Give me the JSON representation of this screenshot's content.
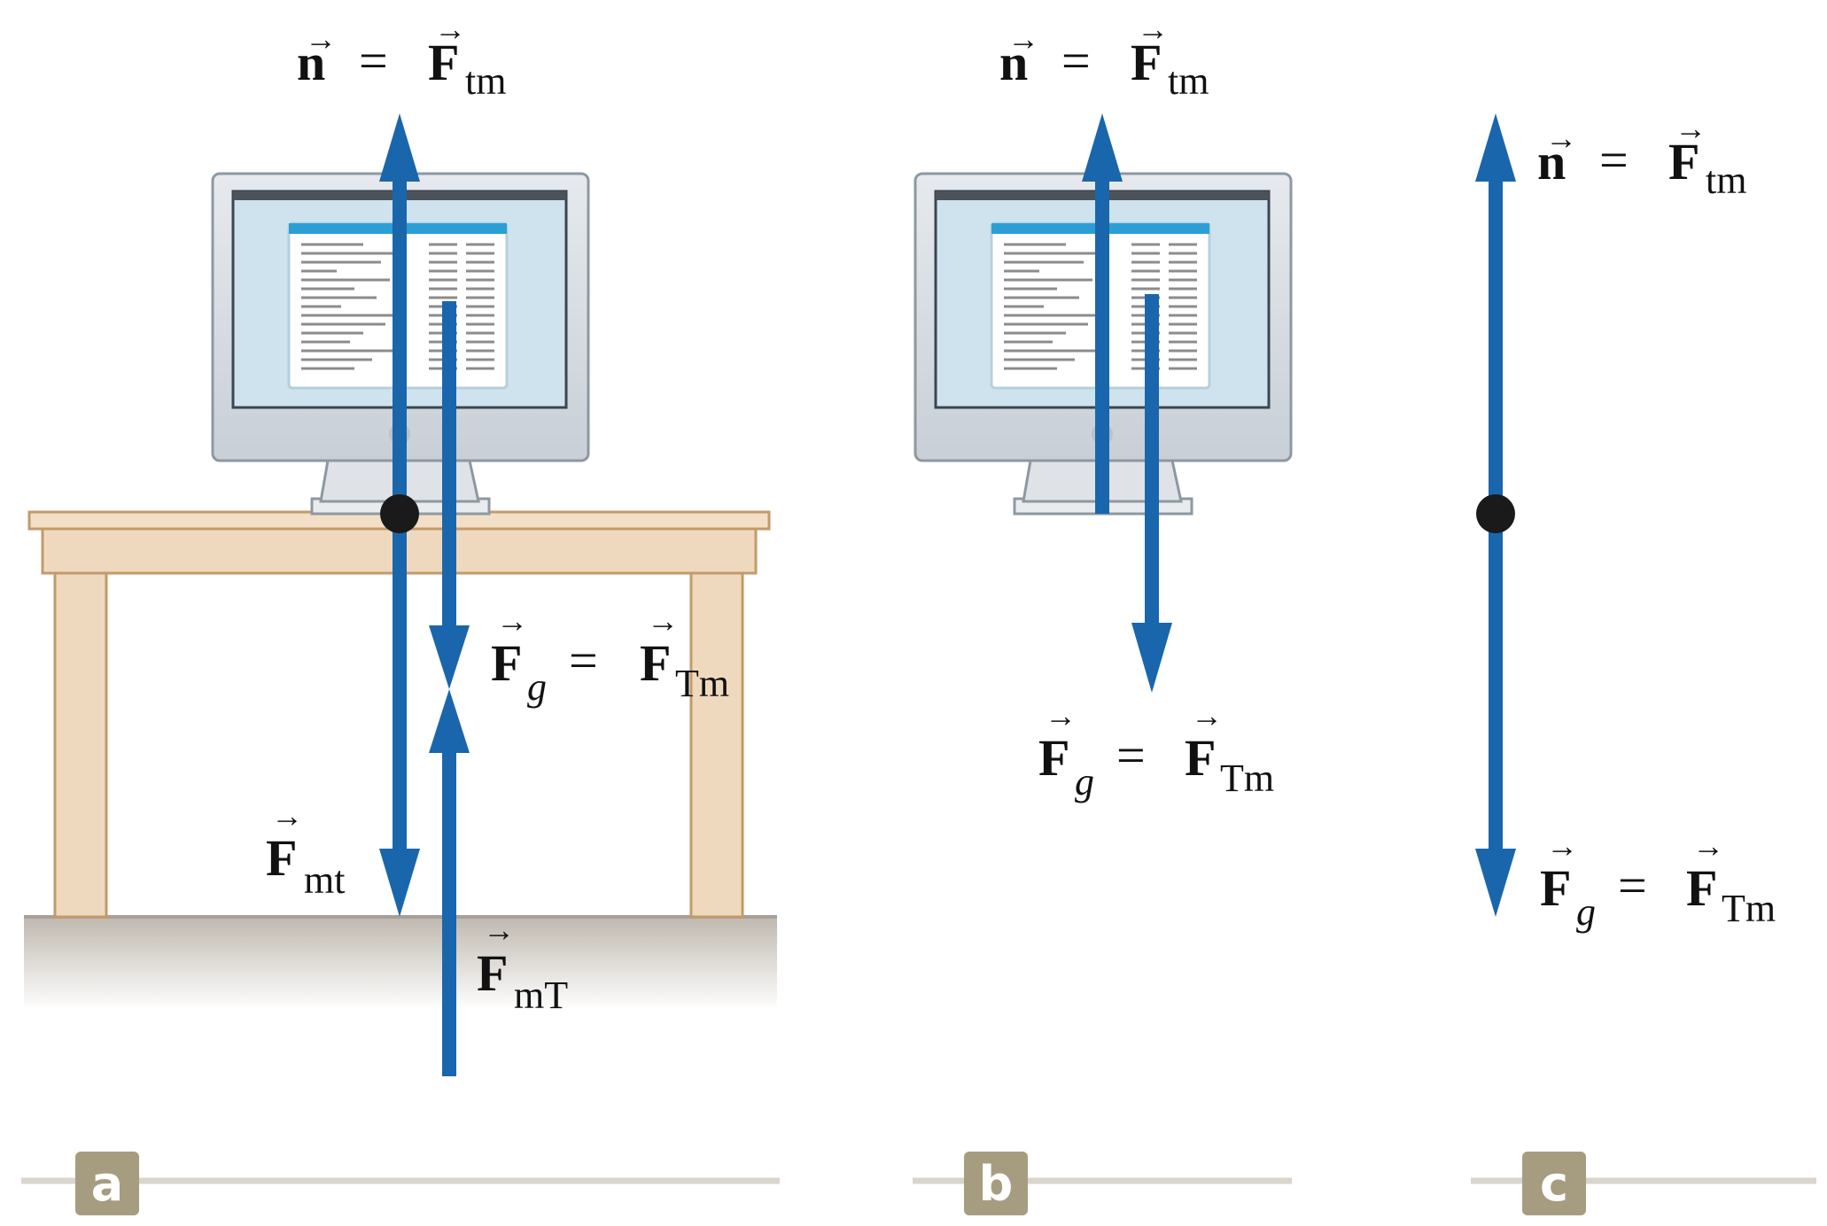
{
  "colors": {
    "arrow": "#1a66ad",
    "table": "#efd9be",
    "table_edge": "#c39a6a",
    "monitor": "#d7dde3",
    "monitor_edge": "#8d98a3",
    "screen": "#cfe3ef",
    "floor": "#c9c3bb",
    "panel_tag": "#a69d80",
    "panel_line": "#d9d5cc"
  },
  "labels": {
    "a_n_top": {
      "lhs": "n",
      "rhs": "F",
      "sub": "tm"
    },
    "a_fg": {
      "lhs": "F",
      "lhs_sub": "g",
      "rhs": "F",
      "rhs_sub": "Tm"
    },
    "a_fmt": {
      "main": "F",
      "sub": "mt"
    },
    "a_fmT": {
      "main": "F",
      "sub": "mT"
    },
    "b_n_top": {
      "lhs": "n",
      "rhs": "F",
      "sub": "tm"
    },
    "b_fg": {
      "lhs": "F",
      "lhs_sub": "g",
      "rhs": "F",
      "rhs_sub": "Tm"
    },
    "c_n": {
      "lhs": "n",
      "rhs": "F",
      "sub": "tm"
    },
    "c_fg": {
      "lhs": "F",
      "lhs_sub": "g",
      "rhs": "F",
      "rhs_sub": "Tm"
    }
  },
  "equals": "=",
  "vector_arrow": "→",
  "panels": [
    "a",
    "b",
    "c"
  ]
}
